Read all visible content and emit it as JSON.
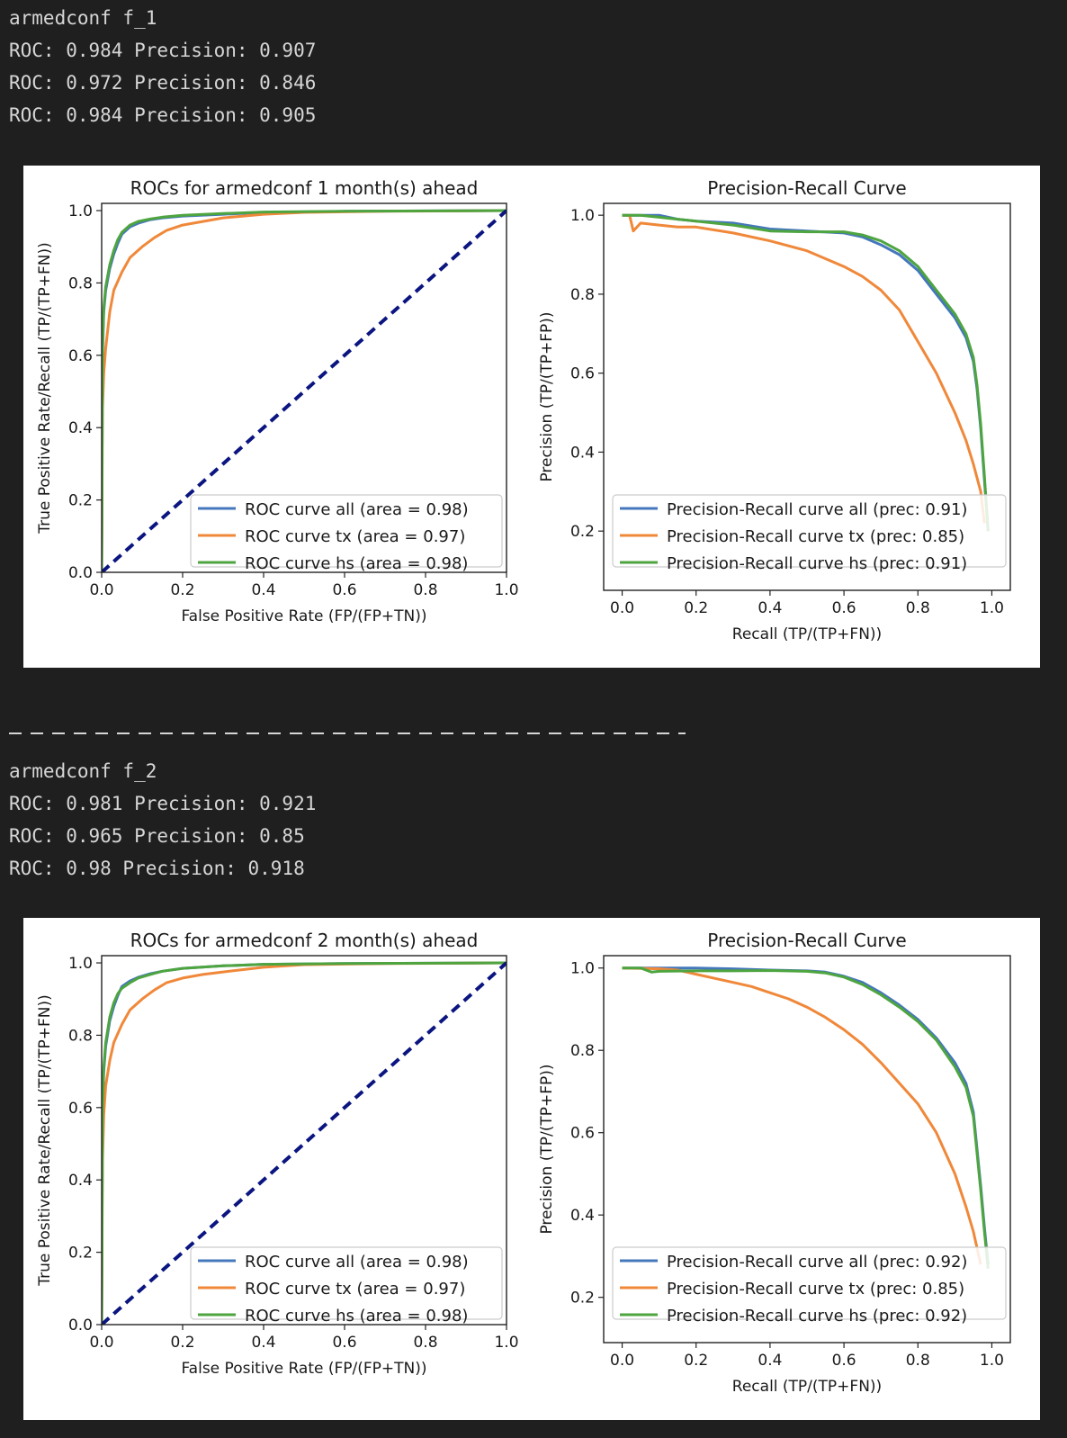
{
  "outputs": [
    {
      "header": "armedconf f_1",
      "lines": [
        "ROC: 0.984 Precision: 0.907",
        "ROC: 0.972 Precision: 0.846",
        "ROC: 0.984 Precision: 0.905"
      ]
    },
    {
      "header": "armedconf f_2",
      "lines": [
        "ROC: 0.981 Precision: 0.921",
        "ROC: 0.965 Precision: 0.85",
        "ROC: 0.98 Precision: 0.918"
      ]
    }
  ],
  "colors": {
    "all": "#4477bb",
    "tx": "#f0883a",
    "hs": "#4ea53f",
    "diagonal": "#0b1580"
  },
  "chart_data": [
    {
      "type": "line",
      "title": "ROCs for armedconf 1 month(s) ahead",
      "xlabel": "False Positive Rate (FP/(FP+TN))",
      "ylabel": "True Positive Rate/Recall (TP/(TP+FN))",
      "xlim": [
        0,
        1
      ],
      "ylim": [
        0,
        1.02
      ],
      "xticks": [
        "0.0",
        "0.2",
        "0.4",
        "0.6",
        "0.8",
        "1.0"
      ],
      "yticks": [
        "0.0",
        "0.2",
        "0.4",
        "0.6",
        "0.8",
        "1.0"
      ],
      "legend_position": "lower right",
      "series": [
        {
          "name": "ROC curve all (area = 0.98)",
          "color_key": "all",
          "x": [
            0,
            0.002,
            0.005,
            0.01,
            0.02,
            0.03,
            0.04,
            0.05,
            0.07,
            0.09,
            0.12,
            0.15,
            0.2,
            0.3,
            0.4,
            0.6,
            1.0
          ],
          "y": [
            0,
            0.6,
            0.72,
            0.78,
            0.84,
            0.88,
            0.91,
            0.935,
            0.955,
            0.965,
            0.975,
            0.98,
            0.985,
            0.99,
            0.995,
            0.998,
            1.0
          ]
        },
        {
          "name": "ROC curve tx (area = 0.97)",
          "color_key": "tx",
          "x": [
            0,
            0.002,
            0.005,
            0.01,
            0.02,
            0.03,
            0.05,
            0.07,
            0.1,
            0.13,
            0.16,
            0.2,
            0.25,
            0.3,
            0.4,
            0.5,
            0.7,
            1.0
          ],
          "y": [
            0,
            0.45,
            0.55,
            0.62,
            0.72,
            0.78,
            0.83,
            0.87,
            0.9,
            0.925,
            0.945,
            0.96,
            0.97,
            0.98,
            0.99,
            0.995,
            0.998,
            1.0
          ]
        },
        {
          "name": "ROC curve hs (area = 0.98)",
          "color_key": "hs",
          "x": [
            0,
            0.002,
            0.005,
            0.01,
            0.02,
            0.03,
            0.04,
            0.05,
            0.07,
            0.09,
            0.12,
            0.15,
            0.2,
            0.3,
            0.4,
            0.6,
            1.0
          ],
          "y": [
            0,
            0.62,
            0.73,
            0.79,
            0.85,
            0.89,
            0.92,
            0.94,
            0.96,
            0.97,
            0.977,
            0.982,
            0.987,
            0.992,
            0.996,
            0.998,
            1.0
          ]
        },
        {
          "name": "",
          "color_key": "diagonal",
          "dashed": true,
          "x": [
            0,
            1
          ],
          "y": [
            0,
            1
          ]
        }
      ]
    },
    {
      "type": "line",
      "title": "Precision-Recall Curve",
      "xlabel": "Recall (TP/(TP+FN))",
      "ylabel": "Precision (TP/(TP+FP))",
      "xlim": [
        -0.05,
        1.05
      ],
      "ylim": [
        0.05,
        1.03
      ],
      "xticks": [
        "0.0",
        "0.2",
        "0.4",
        "0.6",
        "0.8",
        "1.0"
      ],
      "yticks": [
        "0.2",
        "0.4",
        "0.6",
        "0.8",
        "1.0"
      ],
      "legend_position": "lower right",
      "series": [
        {
          "name": "Precision-Recall curve all (prec: 0.91)",
          "color_key": "all",
          "x": [
            0,
            0.05,
            0.1,
            0.15,
            0.2,
            0.3,
            0.4,
            0.5,
            0.6,
            0.65,
            0.7,
            0.75,
            0.8,
            0.85,
            0.9,
            0.93,
            0.95,
            0.96,
            0.97,
            0.98,
            0.99
          ],
          "y": [
            1.0,
            1.0,
            1.0,
            0.99,
            0.985,
            0.98,
            0.965,
            0.96,
            0.955,
            0.945,
            0.925,
            0.9,
            0.86,
            0.8,
            0.74,
            0.69,
            0.63,
            0.56,
            0.46,
            0.33,
            0.2
          ]
        },
        {
          "name": "Precision-Recall curve tx (prec: 0.85)",
          "color_key": "tx",
          "x": [
            0,
            0.02,
            0.03,
            0.05,
            0.1,
            0.15,
            0.2,
            0.3,
            0.4,
            0.5,
            0.6,
            0.65,
            0.7,
            0.75,
            0.8,
            0.85,
            0.9,
            0.93,
            0.95,
            0.97,
            0.98
          ],
          "y": [
            1.0,
            1.0,
            0.96,
            0.98,
            0.975,
            0.97,
            0.97,
            0.955,
            0.935,
            0.91,
            0.87,
            0.845,
            0.81,
            0.76,
            0.68,
            0.6,
            0.5,
            0.43,
            0.37,
            0.3,
            0.22
          ]
        },
        {
          "name": "Precision-Recall curve hs (prec: 0.91)",
          "color_key": "hs",
          "x": [
            0,
            0.05,
            0.1,
            0.15,
            0.2,
            0.3,
            0.4,
            0.5,
            0.6,
            0.65,
            0.7,
            0.75,
            0.8,
            0.85,
            0.9,
            0.93,
            0.95,
            0.96,
            0.97,
            0.98,
            0.99
          ],
          "y": [
            1.0,
            1.0,
            0.995,
            0.99,
            0.985,
            0.975,
            0.96,
            0.958,
            0.958,
            0.95,
            0.935,
            0.91,
            0.87,
            0.81,
            0.75,
            0.7,
            0.64,
            0.57,
            0.47,
            0.34,
            0.2
          ]
        }
      ]
    },
    {
      "type": "line",
      "title": "ROCs for armedconf 2 month(s) ahead",
      "xlabel": "False Positive Rate (FP/(FP+TN))",
      "ylabel": "True Positive Rate/Recall (TP/(TP+FN))",
      "xlim": [
        0,
        1
      ],
      "ylim": [
        0,
        1.02
      ],
      "xticks": [
        "0.0",
        "0.2",
        "0.4",
        "0.6",
        "0.8",
        "1.0"
      ],
      "yticks": [
        "0.0",
        "0.2",
        "0.4",
        "0.6",
        "0.8",
        "1.0"
      ],
      "legend_position": "lower right",
      "series": [
        {
          "name": "ROC curve all (area = 0.98)",
          "color_key": "all",
          "x": [
            0,
            0.002,
            0.005,
            0.01,
            0.02,
            0.03,
            0.04,
            0.05,
            0.07,
            0.09,
            0.12,
            0.15,
            0.2,
            0.3,
            0.4,
            0.6,
            1.0
          ],
          "y": [
            0,
            0.58,
            0.7,
            0.77,
            0.84,
            0.88,
            0.91,
            0.935,
            0.95,
            0.96,
            0.97,
            0.977,
            0.985,
            0.992,
            0.996,
            0.998,
            1.0
          ]
        },
        {
          "name": "ROC curve tx (area = 0.97)",
          "color_key": "tx",
          "x": [
            0,
            0.002,
            0.005,
            0.01,
            0.02,
            0.03,
            0.05,
            0.07,
            0.1,
            0.13,
            0.16,
            0.2,
            0.25,
            0.3,
            0.4,
            0.5,
            0.7,
            1.0
          ],
          "y": [
            0,
            0.45,
            0.58,
            0.66,
            0.73,
            0.78,
            0.83,
            0.87,
            0.9,
            0.925,
            0.945,
            0.958,
            0.968,
            0.975,
            0.988,
            0.995,
            0.998,
            1.0
          ]
        },
        {
          "name": "ROC curve hs (area = 0.98)",
          "color_key": "hs",
          "x": [
            0,
            0.002,
            0.005,
            0.01,
            0.02,
            0.03,
            0.04,
            0.05,
            0.07,
            0.09,
            0.12,
            0.15,
            0.2,
            0.3,
            0.4,
            0.6,
            1.0
          ],
          "y": [
            0,
            0.6,
            0.71,
            0.78,
            0.85,
            0.89,
            0.915,
            0.93,
            0.945,
            0.958,
            0.968,
            0.977,
            0.985,
            0.992,
            0.996,
            0.998,
            1.0
          ]
        },
        {
          "name": "",
          "color_key": "diagonal",
          "dashed": true,
          "x": [
            0,
            1
          ],
          "y": [
            0,
            1
          ]
        }
      ]
    },
    {
      "type": "line",
      "title": "Precision-Recall Curve",
      "xlabel": "Recall (TP/(TP+FN))",
      "ylabel": "Precision (TP/(TP+FP))",
      "xlim": [
        -0.05,
        1.05
      ],
      "ylim": [
        0.09,
        1.03
      ],
      "xticks": [
        "0.0",
        "0.2",
        "0.4",
        "0.6",
        "0.8",
        "1.0"
      ],
      "yticks": [
        "0.2",
        "0.4",
        "0.6",
        "0.8",
        "1.0"
      ],
      "legend_position": "lower right",
      "series": [
        {
          "name": "Precision-Recall curve all (prec: 0.92)",
          "color_key": "all",
          "x": [
            0,
            0.1,
            0.2,
            0.3,
            0.4,
            0.5,
            0.55,
            0.6,
            0.65,
            0.7,
            0.75,
            0.8,
            0.85,
            0.9,
            0.93,
            0.95,
            0.96,
            0.97,
            0.98,
            0.99
          ],
          "y": [
            1.0,
            1.0,
            1.0,
            0.998,
            0.995,
            0.993,
            0.99,
            0.98,
            0.965,
            0.94,
            0.91,
            0.875,
            0.83,
            0.77,
            0.72,
            0.65,
            0.56,
            0.47,
            0.37,
            0.28
          ]
        },
        {
          "name": "Precision-Recall curve tx (prec: 0.85)",
          "color_key": "tx",
          "x": [
            0,
            0.1,
            0.15,
            0.2,
            0.25,
            0.3,
            0.35,
            0.4,
            0.45,
            0.5,
            0.55,
            0.6,
            0.65,
            0.7,
            0.75,
            0.8,
            0.85,
            0.9,
            0.93,
            0.95,
            0.97
          ],
          "y": [
            1.0,
            0.998,
            0.995,
            0.985,
            0.975,
            0.965,
            0.955,
            0.94,
            0.925,
            0.905,
            0.88,
            0.85,
            0.815,
            0.77,
            0.72,
            0.67,
            0.6,
            0.5,
            0.42,
            0.36,
            0.28
          ]
        },
        {
          "name": "Precision-Recall curve hs (prec: 0.92)",
          "color_key": "hs",
          "x": [
            0,
            0.05,
            0.08,
            0.1,
            0.2,
            0.3,
            0.4,
            0.5,
            0.55,
            0.6,
            0.65,
            0.7,
            0.75,
            0.8,
            0.85,
            0.9,
            0.93,
            0.95,
            0.96,
            0.97,
            0.98,
            0.99
          ],
          "y": [
            1.0,
            1.0,
            0.99,
            0.992,
            0.993,
            0.993,
            0.994,
            0.992,
            0.988,
            0.978,
            0.96,
            0.935,
            0.905,
            0.87,
            0.825,
            0.76,
            0.71,
            0.64,
            0.55,
            0.46,
            0.36,
            0.27
          ]
        }
      ]
    }
  ]
}
